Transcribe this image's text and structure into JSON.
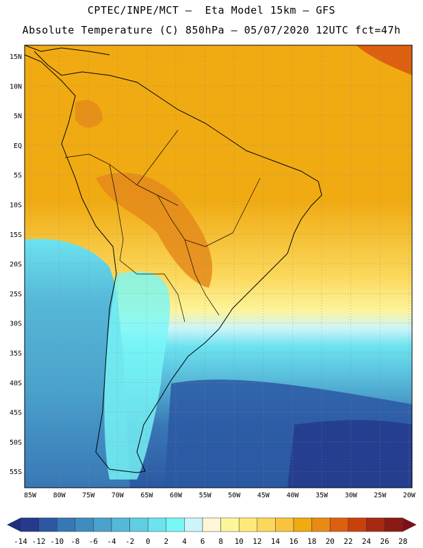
{
  "header": {
    "line1": "CPTEC/INPE/MCT –  Eta Model 15km – GFS",
    "line2": "Absolute Temperature (C) 850hPa – 05/07/2020 12UTC fct=47h"
  },
  "axes": {
    "lat_labels": [
      "15N",
      "10N",
      "5N",
      "EQ",
      "5S",
      "10S",
      "15S",
      "20S",
      "25S",
      "30S",
      "35S",
      "40S",
      "45S",
      "50S",
      "55S"
    ],
    "lon_labels": [
      "85W",
      "80W",
      "75W",
      "70W",
      "65W",
      "60W",
      "55W",
      "50W",
      "45W",
      "40W",
      "35W",
      "30W",
      "25W",
      "20W"
    ]
  },
  "colorbar": {
    "labels": [
      "-14",
      "-12",
      "-10",
      "-8",
      "-6",
      "-4",
      "-2",
      "0",
      "2",
      "4",
      "6",
      "8",
      "10",
      "12",
      "14",
      "16",
      "18",
      "20",
      "22",
      "24",
      "26",
      "28"
    ],
    "low_cap_color": "#1f2f7a",
    "high_cap_color": "#7a0f1c",
    "colors": [
      "#253a8c",
      "#2c58a3",
      "#3877b6",
      "#3f8cc0",
      "#4aa2cc",
      "#56b8d8",
      "#5fcde3",
      "#6ce3ef",
      "#78f7f7",
      "#cdf4fa",
      "#fff6d6",
      "#fdf49c",
      "#fde97a",
      "#fbd75a",
      "#f7c43c",
      "#f0aa12",
      "#e98a17",
      "#dc6010",
      "#c8410d",
      "#a72a10",
      "#8a1a12"
    ]
  },
  "colors": {
    "warm": "#f0a41a",
    "hot": "#e48a1b",
    "yellow": "#fbd75a",
    "cyan": "#6ce3ef",
    "mid_blue": "#4aa2cc",
    "deep_blue": "#2c58a3"
  }
}
